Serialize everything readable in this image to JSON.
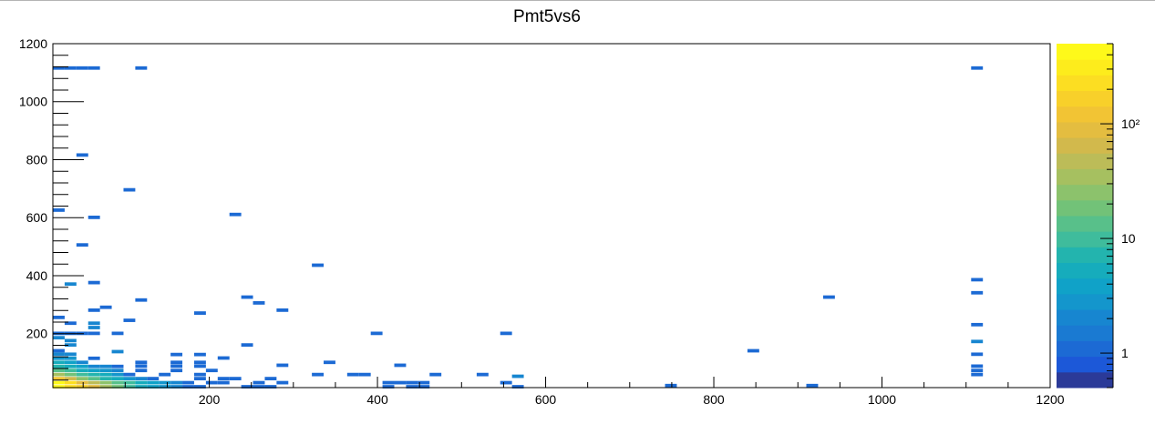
{
  "chart_data": {
    "type": "heatmap",
    "title": "Pmt5vs6",
    "xlabel": "",
    "ylabel": "",
    "xlim": [
      14,
      1200
    ],
    "ylim": [
      14,
      1200
    ],
    "x_ticks": [
      200,
      400,
      600,
      800,
      1000,
      1200
    ],
    "y_ticks": [
      200,
      400,
      600,
      800,
      1000,
      1200
    ],
    "bin_size": 14,
    "z_scale": "log",
    "zlim": [
      0.5,
      500
    ],
    "z_tick_values": [
      1,
      10,
      100
    ],
    "z_tick_labels": [
      "1",
      "10",
      "10²"
    ],
    "palette": [
      "#2b3a98",
      "#1c58d8",
      "#1c6ad4",
      "#1a7ad2",
      "#1786d0",
      "#1496cc",
      "#10a2c8",
      "#16acbc",
      "#23b4ae",
      "#3fbc9c",
      "#58c08a",
      "#72c278",
      "#8cc26c",
      "#a6c060",
      "#bcbc58",
      "#d2b94c",
      "#e4bd40",
      "#f2c434",
      "#f8d02a",
      "#fcde22",
      "#fdec1c",
      "#fef91a"
    ],
    "bins": [
      [
        21,
        1115,
        1
      ],
      [
        35,
        1115,
        1
      ],
      [
        49,
        1115,
        1
      ],
      [
        63,
        1115,
        1
      ],
      [
        119,
        1115,
        1
      ],
      [
        1113,
        1115,
        1
      ],
      [
        49,
        815,
        1
      ],
      [
        105,
        695,
        1
      ],
      [
        21,
        625,
        1
      ],
      [
        63,
        600,
        1
      ],
      [
        231,
        610,
        1
      ],
      [
        49,
        505,
        1
      ],
      [
        329,
        435,
        1
      ],
      [
        1113,
        385,
        1
      ],
      [
        35,
        370,
        2
      ],
      [
        63,
        375,
        1
      ],
      [
        1113,
        340,
        1
      ],
      [
        245,
        325,
        1
      ],
      [
        937,
        325,
        1
      ],
      [
        119,
        315,
        1
      ],
      [
        259,
        305,
        1
      ],
      [
        77,
        290,
        1
      ],
      [
        63,
        280,
        1
      ],
      [
        287,
        280,
        1
      ],
      [
        189,
        270,
        1
      ],
      [
        21,
        255,
        1
      ],
      [
        105,
        245,
        1
      ],
      [
        35,
        235,
        1
      ],
      [
        63,
        235,
        2
      ],
      [
        1113,
        230,
        1
      ],
      [
        63,
        220,
        2
      ],
      [
        21,
        200,
        1
      ],
      [
        35,
        200,
        1
      ],
      [
        49,
        200,
        1
      ],
      [
        63,
        200,
        1
      ],
      [
        91,
        200,
        1
      ],
      [
        399,
        200,
        1
      ],
      [
        553,
        200,
        1
      ],
      [
        21,
        185,
        2
      ],
      [
        35,
        175,
        2
      ],
      [
        35,
        160,
        2
      ],
      [
        245,
        160,
        1
      ],
      [
        1113,
        172,
        2
      ],
      [
        21,
        140,
        1
      ],
      [
        91,
        137,
        2
      ],
      [
        847,
        140,
        1
      ],
      [
        1113,
        128,
        1
      ],
      [
        161,
        127,
        1
      ],
      [
        189,
        127,
        1
      ],
      [
        21,
        128,
        2
      ],
      [
        35,
        128,
        2
      ],
      [
        21,
        114,
        3
      ],
      [
        35,
        114,
        3
      ],
      [
        63,
        114,
        1
      ],
      [
        217,
        115,
        1
      ],
      [
        343,
        100,
        1
      ],
      [
        161,
        100,
        1
      ],
      [
        189,
        100,
        1
      ],
      [
        119,
        100,
        1
      ],
      [
        21,
        100,
        5
      ],
      [
        35,
        100,
        4
      ],
      [
        49,
        100,
        2
      ],
      [
        1113,
        87,
        1
      ],
      [
        287,
        90,
        1
      ],
      [
        427,
        90,
        1
      ],
      [
        21,
        86,
        8
      ],
      [
        35,
        86,
        6
      ],
      [
        49,
        86,
        4
      ],
      [
        63,
        86,
        2
      ],
      [
        77,
        86,
        2
      ],
      [
        91,
        86,
        1
      ],
      [
        119,
        87,
        1
      ],
      [
        161,
        87,
        1
      ],
      [
        189,
        87,
        1
      ],
      [
        21,
        72,
        15
      ],
      [
        35,
        72,
        10
      ],
      [
        49,
        72,
        6
      ],
      [
        63,
        72,
        4
      ],
      [
        77,
        72,
        3
      ],
      [
        91,
        72,
        2
      ],
      [
        119,
        72,
        1
      ],
      [
        161,
        72,
        1
      ],
      [
        1113,
        58,
        1
      ],
      [
        1113,
        72,
        1
      ],
      [
        203,
        72,
        1
      ],
      [
        21,
        58,
        30
      ],
      [
        35,
        58,
        18
      ],
      [
        49,
        58,
        10
      ],
      [
        63,
        58,
        7
      ],
      [
        77,
        58,
        5
      ],
      [
        91,
        58,
        3
      ],
      [
        105,
        58,
        1
      ],
      [
        147,
        58,
        1
      ],
      [
        189,
        58,
        1
      ],
      [
        329,
        58,
        1
      ],
      [
        371,
        58,
        1
      ],
      [
        385,
        58,
        1
      ],
      [
        469,
        58,
        1
      ],
      [
        525,
        58,
        1
      ],
      [
        567,
        52,
        2
      ],
      [
        21,
        44,
        120
      ],
      [
        35,
        44,
        60
      ],
      [
        49,
        44,
        25
      ],
      [
        63,
        44,
        12
      ],
      [
        77,
        44,
        8
      ],
      [
        91,
        44,
        5
      ],
      [
        105,
        44,
        3
      ],
      [
        119,
        44,
        2
      ],
      [
        133,
        44,
        1
      ],
      [
        189,
        44,
        1
      ],
      [
        217,
        44,
        1
      ],
      [
        231,
        44,
        1
      ],
      [
        273,
        44,
        1
      ],
      [
        21,
        30,
        400
      ],
      [
        35,
        30,
        200
      ],
      [
        49,
        30,
        90
      ],
      [
        63,
        30,
        45
      ],
      [
        77,
        30,
        25
      ],
      [
        91,
        30,
        15
      ],
      [
        105,
        30,
        10
      ],
      [
        119,
        30,
        6
      ],
      [
        133,
        30,
        4
      ],
      [
        147,
        30,
        3
      ],
      [
        161,
        30,
        2
      ],
      [
        175,
        30,
        1
      ],
      [
        203,
        30,
        1
      ],
      [
        217,
        30,
        1
      ],
      [
        259,
        30,
        1
      ],
      [
        287,
        30,
        1
      ],
      [
        413,
        30,
        1
      ],
      [
        427,
        30,
        1
      ],
      [
        441,
        30,
        1
      ],
      [
        455,
        30,
        1
      ],
      [
        553,
        30,
        1
      ],
      [
        567,
        16,
        1
      ],
      [
        749,
        20,
        1
      ],
      [
        917,
        20,
        1
      ],
      [
        21,
        16,
        400
      ],
      [
        35,
        16,
        250
      ],
      [
        49,
        16,
        150
      ],
      [
        63,
        16,
        80
      ],
      [
        77,
        16,
        40
      ],
      [
        91,
        16,
        20
      ],
      [
        105,
        16,
        10
      ],
      [
        119,
        16,
        6
      ],
      [
        133,
        16,
        4
      ],
      [
        147,
        16,
        3
      ],
      [
        161,
        16,
        2
      ],
      [
        175,
        16,
        1
      ],
      [
        189,
        16,
        1
      ],
      [
        245,
        16,
        1
      ],
      [
        259,
        16,
        1
      ],
      [
        273,
        16,
        1
      ],
      [
        413,
        16,
        1
      ],
      [
        441,
        16,
        1
      ],
      [
        455,
        16,
        1
      ]
    ]
  }
}
